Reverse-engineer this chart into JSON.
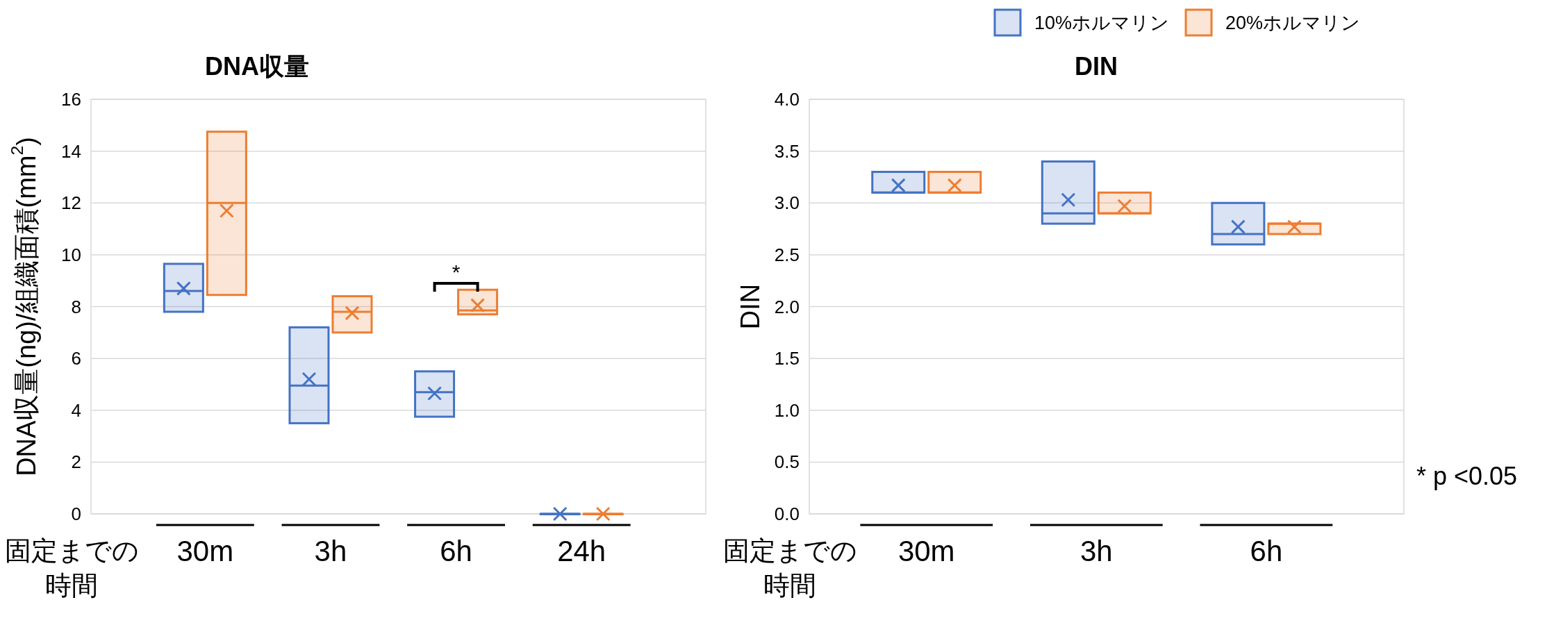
{
  "chart_data": [
    {
      "type": "box",
      "title": "DNA収量",
      "xlabel": "固定までの時間",
      "ylabel": "DNA収量(ng)/組織面積(mm$^{2}$)",
      "categories": [
        "30m",
        "3h",
        "6h",
        "24h"
      ],
      "ylim": [
        0,
        16
      ],
      "yticks": [
        0,
        2,
        4,
        6,
        8,
        10,
        12,
        14,
        16
      ],
      "grid": "y",
      "marker": "cross",
      "legend": "top right",
      "series": [
        {
          "name": "10%ホルマリン",
          "color": "#4472c4",
          "boxes": [
            {
              "low": 7.8,
              "q1": 7.8,
              "median": 8.6,
              "q3": 9.65,
              "high": 9.65,
              "mean": 8.7
            },
            {
              "low": 3.5,
              "q1": 3.5,
              "median": 4.95,
              "q3": 7.2,
              "high": 7.2,
              "mean": 5.2
            },
            {
              "low": 3.75,
              "q1": 3.75,
              "median": 4.7,
              "q3": 5.5,
              "high": 5.5,
              "mean": 4.65
            },
            {
              "low": 0,
              "q1": 0,
              "median": 0,
              "q3": 0,
              "high": 0,
              "mean": 0
            }
          ]
        },
        {
          "name": "20%ホルマリン",
          "color": "#ed7d31",
          "boxes": [
            {
              "low": 8.45,
              "q1": 8.45,
              "median": 12,
              "q3": 14.75,
              "high": 14.75,
              "mean": 11.7
            },
            {
              "low": 7,
              "q1": 7,
              "median": 7.8,
              "q3": 8.4,
              "high": 8.4,
              "mean": 7.75
            },
            {
              "low": 7.7,
              "q1": 7.7,
              "median": 7.85,
              "q3": 8.65,
              "high": 8.65,
              "mean": 8.05
            },
            {
              "low": 0,
              "q1": 0,
              "median": 0,
              "q3": 0,
              "high": 0,
              "mean": 0
            }
          ]
        }
      ],
      "annotations": [
        {
          "text": "*",
          "x": "6h",
          "y": 8.9
        }
      ]
    },
    {
      "type": "box",
      "title": "DIN",
      "xlabel": "固定までの時間",
      "ylabel": "DIN",
      "categories": [
        "30m",
        "3h",
        "6h"
      ],
      "ylim": [
        0,
        4
      ],
      "yticks": [
        {
          "value": 0,
          "label": "0.0"
        },
        {
          "value": 0.5,
          "label": "0.5"
        },
        {
          "value": 1,
          "label": "1.0"
        },
        {
          "value": 1.5,
          "label": "1.5"
        },
        {
          "value": 2,
          "label": "2.0"
        },
        {
          "value": 2.5,
          "label": "2.5"
        },
        {
          "value": 3,
          "label": "3.0"
        },
        {
          "value": 3.5,
          "label": "3.5"
        },
        {
          "value": 4,
          "label": "4.0"
        }
      ],
      "grid": "y",
      "marker": "cross",
      "series": [
        {
          "color": "#4472c4",
          "boxes": [
            {
              "low": 3.1,
              "q1": 3.1,
              "median": 3.1,
              "q3": 3.3,
              "high": 3.3,
              "mean": 3.17
            },
            {
              "low": 2.8,
              "q1": 2.8,
              "median": 2.9,
              "q3": 3.4,
              "high": 3.4,
              "mean": 3.03
            },
            {
              "low": 2.6,
              "q1": 2.6,
              "median": 2.7,
              "q3": 3,
              "high": 3,
              "mean": 2.77
            }
          ]
        },
        {
          "color": "#ed7d31",
          "boxes": [
            {
              "low": 3.1,
              "q1": 3.1,
              "median": 3.1,
              "q3": 3.3,
              "high": 3.3,
              "mean": 3.17
            },
            {
              "low": 2.9,
              "q1": 2.9,
              "median": 2.9,
              "q3": 3.1,
              "high": 3.1,
              "mean": 2.97
            },
            {
              "low": 2.7,
              "q1": 2.7,
              "median": 2.8,
              "q3": 2.8,
              "high": 2.8,
              "mean": 2.77
            }
          ]
        }
      ],
      "annotations": [
        "* p <0.05"
      ]
    }
  ]
}
